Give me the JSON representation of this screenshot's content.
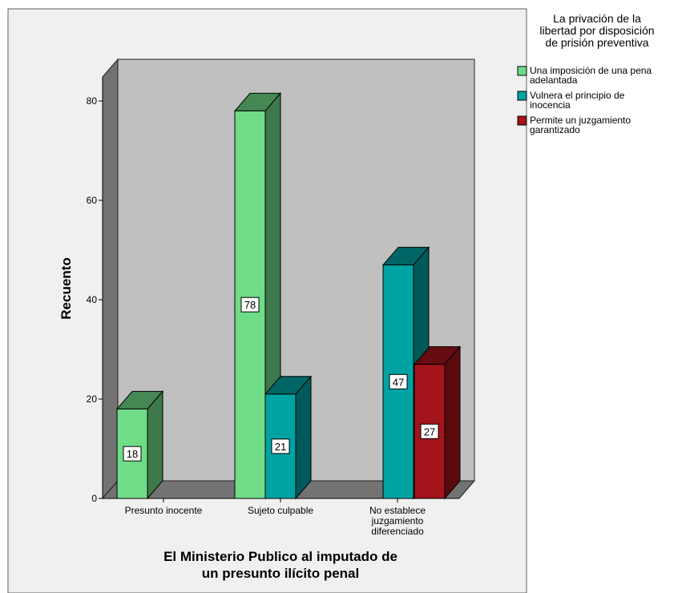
{
  "chart_data": {
    "type": "bar",
    "style": "3d-clustered",
    "title": "",
    "xlabel": "El Ministerio Publico al imputado de un presunto ilícito penal",
    "ylabel": "Recuento",
    "ylim": [
      0,
      90
    ],
    "yticks": [
      0,
      20,
      40,
      60,
      80
    ],
    "grid": false,
    "legend_placement": "right",
    "legend_title": "La privación de la libertad por disposición de prisión preventiva",
    "categories": [
      [
        "Presunto inocente"
      ],
      [
        "Sujeto culpable"
      ],
      [
        "No establece",
        "juzgamiento",
        "diferenciado"
      ]
    ],
    "series": [
      {
        "name": "Una imposición de una pena adelantada",
        "legend_lines": [
          "Una imposición de una pena",
          "adelantada"
        ],
        "color": "#6fdc87",
        "values": [
          18,
          78,
          null
        ]
      },
      {
        "name": "Vulnera el principio de inocencia",
        "legend_lines": [
          "Vulnera el principio de",
          "inocencia"
        ],
        "color": "#00a3a3",
        "values": [
          null,
          21,
          47
        ]
      },
      {
        "name": "Permite un juzgamiento garantizado",
        "legend_lines": [
          "Permite un juzgamiento",
          "garantizado"
        ],
        "color": "#a3141b",
        "values": [
          null,
          null,
          27
        ]
      }
    ],
    "colors": {
      "plot_background": "#c0c0c0",
      "outer_background": "#f0f0f0",
      "wall_side": "#737373"
    }
  }
}
